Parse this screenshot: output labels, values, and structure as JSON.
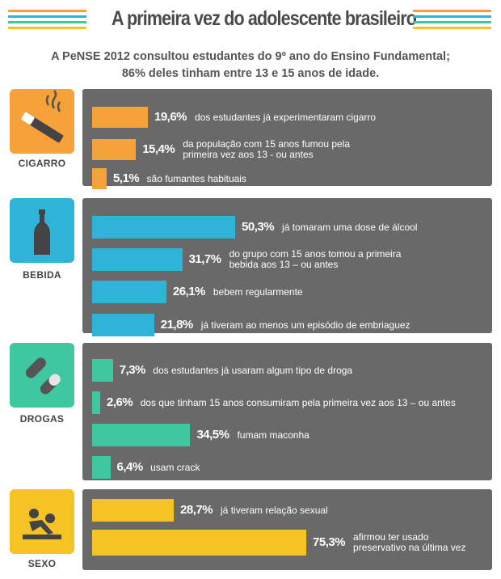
{
  "title": "A primeira vez do adolescente brasileiro",
  "subtitle_line1": "A PeNSE 2012 consultou estudantes do 9º ano do Ensino Fundamental;",
  "subtitle_line2": "86% deles tinham entre 13 e 15 anos de idade.",
  "colors": {
    "cigarro": "#f6a13a",
    "bebida": "#2fb3d9",
    "drogas": "#3ec7a0",
    "sexo": "#f6c324",
    "panel": "#696969"
  },
  "chart_data": {
    "type": "bar",
    "unit": "%",
    "xlim": [
      0,
      100
    ],
    "groups": [
      {
        "key": "cigarro",
        "label": "CIGARRO",
        "icon": "cigarette-icon",
        "items": [
          {
            "value": 19.6,
            "value_label": "19,6%",
            "text": [
              "dos estudantes já experimentaram cigarro"
            ]
          },
          {
            "value": 15.4,
            "value_label": "15,4%",
            "text": [
              "da população com 15 anos fumou pela",
              "primeira vez aos 13 - ou antes"
            ]
          },
          {
            "value": 5.1,
            "value_label": "5,1%",
            "text": [
              "são fumantes habituais"
            ]
          }
        ]
      },
      {
        "key": "bebida",
        "label": "BEBIDA",
        "icon": "bottle-icon",
        "items": [
          {
            "value": 50.3,
            "value_label": "50,3%",
            "text": [
              "já tomaram uma dose de álcool"
            ]
          },
          {
            "value": 31.7,
            "value_label": "31,7%",
            "text": [
              "do grupo com 15 anos tomou a primeira",
              "bebida aos 13 – ou antes"
            ]
          },
          {
            "value": 26.1,
            "value_label": "26,1%",
            "text": [
              "bebem regularmente"
            ]
          },
          {
            "value": 21.8,
            "value_label": "21,8%",
            "text": [
              "já tiveram ao menos um episódio de embriaguez"
            ]
          }
        ]
      },
      {
        "key": "drogas",
        "label": "DROGAS",
        "icon": "pills-icon",
        "items": [
          {
            "value": 7.3,
            "value_label": "7,3%",
            "text": [
              "dos estudantes já usaram algum tipo de droga"
            ]
          },
          {
            "value": 2.6,
            "value_label": "2,6%",
            "text": [
              "dos que tinham 15 anos consumiram pela primeira vez aos 13 – ou antes"
            ]
          },
          {
            "value": 34.5,
            "value_label": "34,5%",
            "text": [
              "fumam maconha"
            ]
          },
          {
            "value": 6.4,
            "value_label": "6,4%",
            "text": [
              "usam crack"
            ]
          }
        ]
      },
      {
        "key": "sexo",
        "label": "SEXO",
        "icon": "couple-icon",
        "items": [
          {
            "value": 28.7,
            "value_label": "28,7%",
            "text": [
              "já tiveram relação sexual"
            ]
          },
          {
            "value": 75.3,
            "value_label": "75,3%",
            "text": [
              "afirmou ter usado",
              "preservativo na última vez"
            ]
          }
        ]
      }
    ]
  }
}
